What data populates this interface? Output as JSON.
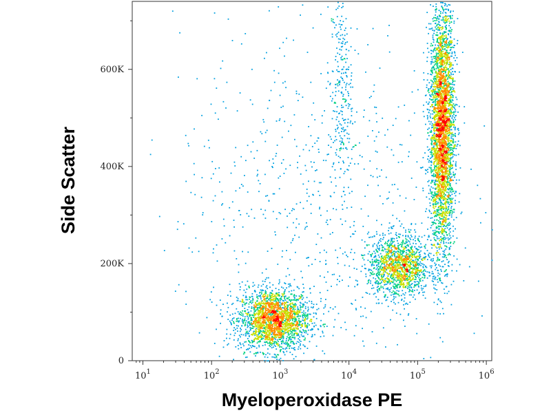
{
  "chart_data": {
    "type": "scatter",
    "title": "",
    "xlabel": "Myeloperoxidase PE",
    "ylabel": "Side Scatter",
    "x_scale": "log",
    "xlim": [
      7,
      1200000
    ],
    "ylim": [
      0,
      740000
    ],
    "x_ticks": [
      {
        "value": 10,
        "base": "10",
        "exp": "1"
      },
      {
        "value": 100,
        "base": "10",
        "exp": "2"
      },
      {
        "value": 1000,
        "base": "10",
        "exp": "3"
      },
      {
        "value": 10000,
        "base": "10",
        "exp": "4"
      },
      {
        "value": 100000,
        "base": "10",
        "exp": "5"
      },
      {
        "value": 1000000,
        "base": "10",
        "exp": "6"
      }
    ],
    "y_ticks": [
      {
        "value": 0,
        "label": "0"
      },
      {
        "value": 200000,
        "label": "200K"
      },
      {
        "value": 400000,
        "label": "400K"
      },
      {
        "value": 600000,
        "label": "600K"
      }
    ],
    "grid": false,
    "colormap": [
      "#0000cc",
      "#00a0e0",
      "#00d080",
      "#c8e000",
      "#ff8c00",
      "#ff0000"
    ],
    "series": [
      {
        "label": "Population at ~10^2.9 MPO, low side scatter",
        "log10_x_center": 2.9,
        "y_center": 85000,
        "log10_x_spread": 0.26,
        "y_spread": 32000,
        "count": 2200
      },
      {
        "label": "Population at ~10^4.7 MPO, ~200K side scatter",
        "log10_x_center": 4.72,
        "y_center": 195000,
        "log10_x_spread": 0.22,
        "y_spread": 32000,
        "count": 1400
      },
      {
        "label": "Population at ~10^5.4 MPO, high side scatter",
        "log10_x_center": 5.35,
        "y_center": 480000,
        "log10_x_spread": 0.09,
        "y_spread": 130000,
        "count": 3600
      },
      {
        "label": "Sparse column at ~10^3.9 MPO",
        "log10_x_center": 3.88,
        "y_center": 560000,
        "log10_x_spread": 0.08,
        "y_spread": 110000,
        "count": 260
      },
      {
        "label": "Scattered events",
        "log10_x_center": 3.5,
        "y_center": 320000,
        "log10_x_spread": 1.0,
        "y_spread": 190000,
        "count": 700
      }
    ]
  }
}
